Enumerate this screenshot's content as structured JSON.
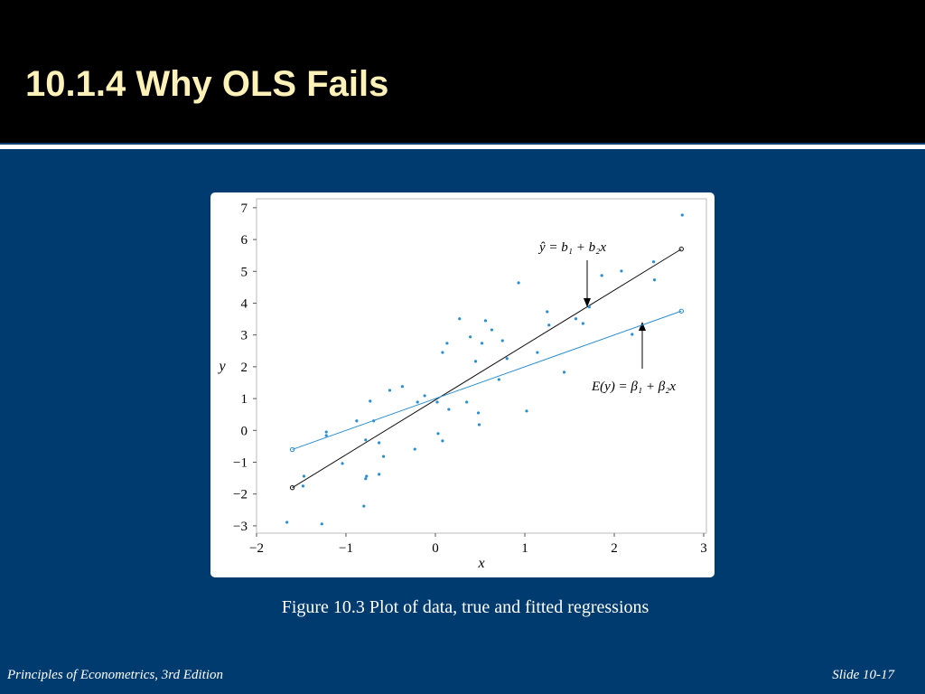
{
  "slide": {
    "title": "10.1.4  Why OLS Fails",
    "caption": "Figure 10.3  Plot of data, true and fitted regressions",
    "footer_left": "Principles of Econometrics, 3rd Edition",
    "footer_right": "Slide 10-17"
  },
  "chart_data": {
    "type": "scatter",
    "x_label": "x",
    "y_label": "y",
    "xlim": [
      -2,
      3.03
    ],
    "ylim": [
      -3.23,
      7.28
    ],
    "xticks": [
      {
        "value": -2,
        "label": "−2"
      },
      {
        "value": -1,
        "label": "−1"
      },
      0,
      1,
      2,
      3
    ],
    "yticks": [
      {
        "value": -3,
        "label": "−3"
      },
      {
        "value": -2,
        "label": "−2"
      },
      {
        "value": -1,
        "label": "−1"
      },
      0,
      1,
      2,
      3,
      4,
      5,
      6,
      7
    ],
    "series": [
      {
        "color": "#2a8fd0",
        "x": [
          2.76,
          -1.66,
          -1.27,
          -0.8,
          -0.77,
          -1.48,
          -1.47,
          0.93,
          0.27,
          0.56,
          2.44,
          2.08,
          1.86,
          1.25,
          1.65,
          1.44,
          2.2,
          0.52,
          0.63,
          0.08,
          0.13,
          0.45,
          0.8,
          0.71,
          1.14,
          0.35,
          0.49,
          0.03,
          0.08,
          0.02,
          -0.2,
          -0.23,
          -0.37,
          -0.51,
          -0.63,
          -0.63,
          -0.78,
          -0.73,
          -0.69,
          -0.88,
          -1.22,
          -1.04,
          -1.22,
          -0.12,
          0.39,
          1.27,
          1.57,
          1.72,
          2.45,
          0.75,
          1.02,
          0.48,
          -0.78,
          0.15,
          -0.58
        ],
        "values": [
          6.77,
          -2.89,
          -2.94,
          -2.38,
          -1.44,
          -1.75,
          -1.44,
          4.64,
          3.51,
          3.45,
          5.3,
          5.01,
          4.87,
          3.73,
          3.36,
          1.83,
          3.02,
          2.74,
          3.16,
          2.45,
          2.74,
          2.17,
          2.26,
          1.6,
          2.45,
          0.89,
          0.18,
          -0.1,
          -0.33,
          0.89,
          0.89,
          -0.59,
          1.38,
          1.26,
          -0.39,
          -1.38,
          -0.3,
          0.92,
          0.3,
          0.3,
          -0.05,
          -1.04,
          -0.16,
          1.09,
          2.94,
          3.31,
          3.51,
          3.88,
          4.73,
          2.82,
          0.61,
          0.55,
          -1.52,
          0.66,
          -0.82
        ]
      }
    ],
    "lines": [
      {
        "color": "#111111",
        "x": [
          -1.6,
          2.75
        ],
        "values": [
          -1.8,
          5.7
        ]
      },
      {
        "color": "#2a8fd0",
        "x": [
          -1.6,
          2.75
        ],
        "values": [
          -0.6,
          3.75
        ]
      }
    ],
    "annotations": [
      {
        "text": "ŷ = b₁ + b₂x"
      },
      {
        "text": "E(y) = β₁ + β₂x"
      }
    ]
  }
}
